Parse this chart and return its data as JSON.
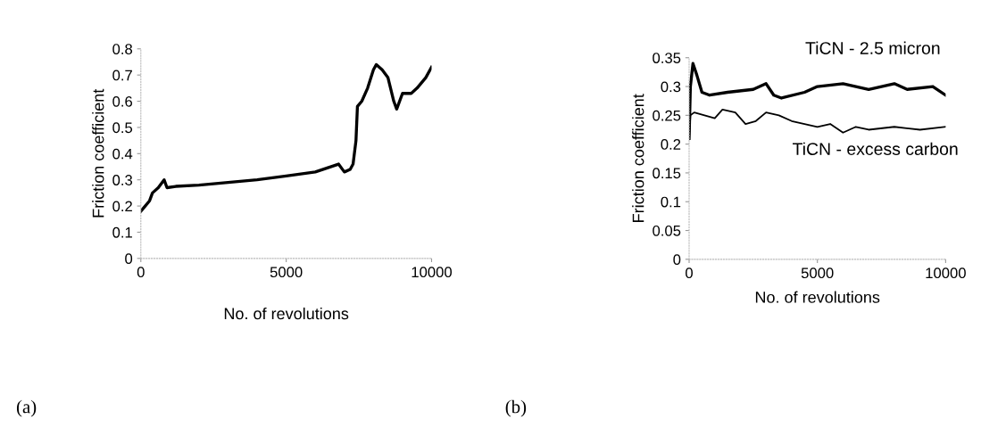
{
  "chart_data": [
    {
      "type": "line",
      "xlabel": "No. of revolutions",
      "ylabel": "Friction coefficient",
      "annotations": [
        "(a)"
      ],
      "xlim": [
        0,
        10000
      ],
      "xticks": [
        0,
        5000,
        10000
      ],
      "ylim": [
        0,
        0.8
      ],
      "yticks": [
        0,
        0.1,
        0.2,
        0.3,
        0.4,
        0.5,
        0.6,
        0.7,
        0.8
      ],
      "grid": false,
      "legend": false,
      "series": [
        {
          "color": "#000000",
          "x": [
            0,
            150,
            300,
            400,
            600,
            800,
            900,
            1200,
            2000,
            3000,
            4000,
            5000,
            6000,
            6800,
            7000,
            7200,
            7300,
            7400,
            7450,
            7600,
            7800,
            8000,
            8100,
            8300,
            8500,
            8700,
            8800,
            9000,
            9300,
            9500,
            9800,
            10000
          ],
          "values": [
            0.18,
            0.2,
            0.22,
            0.25,
            0.27,
            0.3,
            0.27,
            0.275,
            0.28,
            0.29,
            0.3,
            0.315,
            0.33,
            0.36,
            0.33,
            0.34,
            0.36,
            0.45,
            0.58,
            0.6,
            0.65,
            0.72,
            0.74,
            0.72,
            0.69,
            0.6,
            0.57,
            0.63,
            0.63,
            0.65,
            0.69,
            0.73
          ]
        }
      ]
    },
    {
      "type": "line",
      "xlabel": "No. of revolutions",
      "ylabel": "Friction coefficient",
      "annotations": [
        "(b)"
      ],
      "xlim": [
        0,
        10000
      ],
      "xticks": [
        0,
        5000,
        10000
      ],
      "ylim": [
        0,
        0.35
      ],
      "yticks": [
        0,
        0.05,
        0.1,
        0.15,
        0.2,
        0.25,
        0.3,
        0.35
      ],
      "grid": false,
      "legend": false,
      "series": [
        {
          "name": "TiCN - 2.5 micron",
          "color": "#000000",
          "x": [
            0,
            50,
            150,
            300,
            500,
            800,
            1500,
            2500,
            3000,
            3300,
            3600,
            4500,
            5000,
            6000,
            7000,
            8000,
            8500,
            9500,
            10000
          ],
          "values": [
            0.21,
            0.3,
            0.34,
            0.32,
            0.29,
            0.285,
            0.29,
            0.295,
            0.305,
            0.285,
            0.28,
            0.29,
            0.3,
            0.305,
            0.295,
            0.305,
            0.295,
            0.3,
            0.285
          ]
        },
        {
          "name": "TiCN - excess carbon",
          "color": "#000000",
          "x": [
            0,
            50,
            200,
            600,
            1000,
            1300,
            1800,
            2200,
            2600,
            3000,
            3500,
            4000,
            5000,
            5500,
            6000,
            6500,
            7000,
            8000,
            9000,
            10000
          ],
          "values": [
            0.21,
            0.25,
            0.255,
            0.25,
            0.245,
            0.26,
            0.255,
            0.235,
            0.24,
            0.255,
            0.25,
            0.24,
            0.23,
            0.235,
            0.22,
            0.23,
            0.225,
            0.23,
            0.225,
            0.23
          ]
        }
      ]
    }
  ]
}
